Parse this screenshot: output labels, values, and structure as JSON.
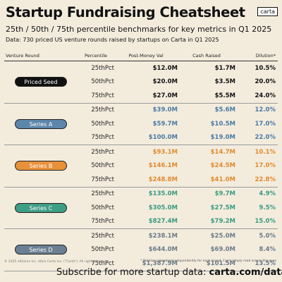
{
  "header": {
    "title": "Startup Fundraising Cheatsheet",
    "logo": "carta",
    "subtitle": "25th / 50th / 75th percentile benchmarks for key metrics in Q1 2025",
    "note": "Data: 730 priced US venture rounds raised by startups on Carta in Q1 2025"
  },
  "columns": {
    "round": "Venture Round",
    "percentile": "Percentile",
    "post_money": "Post-Money Val",
    "cash": "Cash Raised",
    "dilution": "Dilution*"
  },
  "rounds": [
    {
      "name": "Priced Seed",
      "badge_bg": "#111111",
      "badge_fg": "#ffffff",
      "value_color": "#111111",
      "rows": [
        {
          "pct": "25thPct",
          "post": "$12.0M",
          "cash": "$1.7M",
          "dil": "10.5%"
        },
        {
          "pct": "50thPct",
          "post": "$20.0M",
          "cash": "$3.5M",
          "dil": "20.0%"
        },
        {
          "pct": "75thPct",
          "post": "$27.0M",
          "cash": "$5.5M",
          "dil": "24.0%"
        }
      ]
    },
    {
      "name": "Series A",
      "badge_bg": "#5d86ab",
      "badge_fg": "#ffffff",
      "value_color": "#4a7aa3",
      "rows": [
        {
          "pct": "25thPct",
          "post": "$39.0M",
          "cash": "$5.6M",
          "dil": "12.0%"
        },
        {
          "pct": "50thPct",
          "post": "$59.7M",
          "cash": "$10.5M",
          "dil": "17.0%"
        },
        {
          "pct": "75thPct",
          "post": "$100.0M",
          "cash": "$19.0M",
          "dil": "22.0%"
        }
      ]
    },
    {
      "name": "Series B",
      "badge_bg": "#e8913a",
      "badge_fg": "#ffffff",
      "value_color": "#e08a2e",
      "rows": [
        {
          "pct": "25thPct",
          "post": "$93.1M",
          "cash": "$14.7M",
          "dil": "10.1%"
        },
        {
          "pct": "50thPct",
          "post": "$146.1M",
          "cash": "$24.5M",
          "dil": "17.0%"
        },
        {
          "pct": "75thPct",
          "post": "$248.8M",
          "cash": "$41.0M",
          "dil": "22.8%"
        }
      ]
    },
    {
      "name": "Series C",
      "badge_bg": "#3e9d85",
      "badge_fg": "#ffffff",
      "value_color": "#3a9a80",
      "rows": [
        {
          "pct": "25thPct",
          "post": "$135.0M",
          "cash": "$9.7M",
          "dil": "4.9%"
        },
        {
          "pct": "50thPct",
          "post": "$305.0M",
          "cash": "$27.5M",
          "dil": "9.5%"
        },
        {
          "pct": "75thPct",
          "post": "$827.4M",
          "cash": "$79.2M",
          "dil": "15.0%"
        }
      ]
    },
    {
      "name": "Series D",
      "badge_bg": "#6a7f92",
      "badge_fg": "#ffffff",
      "value_color": "#6b7b88",
      "rows": [
        {
          "pct": "25thPct",
          "post": "$238.1M",
          "cash": "$25.0M",
          "dil": "5.0%"
        },
        {
          "pct": "50thPct",
          "post": "$644.0M",
          "cash": "$69.0M",
          "dil": "8.4%"
        },
        {
          "pct": "75thPct",
          "post": "$1,387.9M",
          "cash": "$101.5M",
          "dil": "13.5%"
        }
      ]
    }
  ],
  "footer": {
    "footnote": "* Dilution calculated independently for each round. Can't simply read across the rows",
    "copyright": "© 2025 eShares Inc. d/b/a Carta Inc. (\"Carta\"). All rights reserved.",
    "cta_text": "Subscribe for more startup data: ",
    "cta_url": "carta.com/data"
  }
}
